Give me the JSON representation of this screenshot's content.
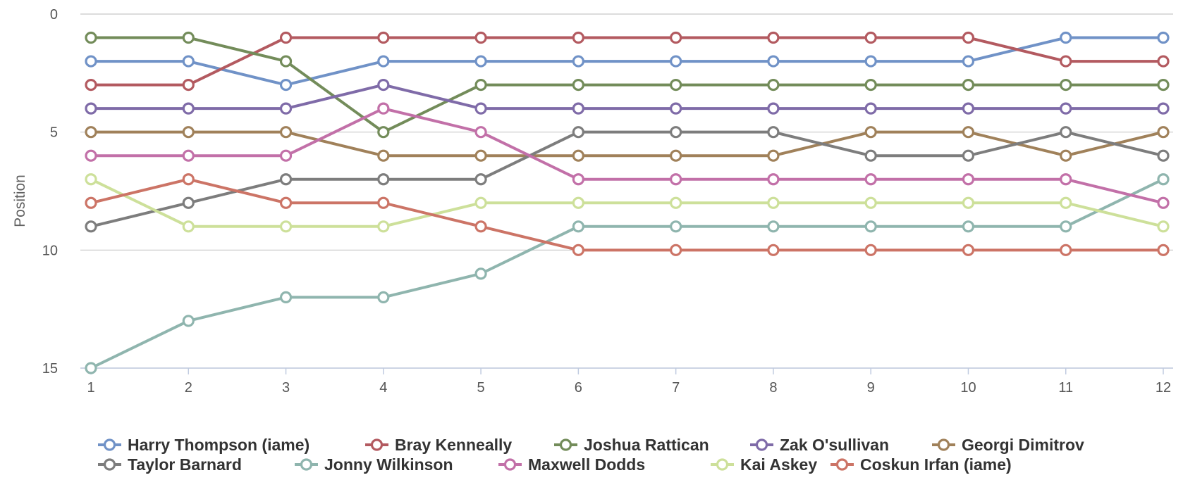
{
  "chart_data": {
    "type": "line",
    "title": "",
    "xlabel": "",
    "ylabel": "Position",
    "x": [
      1,
      2,
      3,
      4,
      5,
      6,
      7,
      8,
      9,
      10,
      11,
      12
    ],
    "xlim": [
      1,
      12
    ],
    "ylim": [
      0,
      15
    ],
    "y_reversed": true,
    "y_ticks": [
      0,
      5,
      10,
      15
    ],
    "grid": true,
    "legend_position": "bottom",
    "series": [
      {
        "name": "Harry Thompson (iame)",
        "color": "#7092c7",
        "values": [
          2,
          2,
          3,
          2,
          2,
          2,
          2,
          2,
          2,
          2,
          1,
          1
        ]
      },
      {
        "name": "Bray Kenneally",
        "color": "#b35a60",
        "values": [
          3,
          3,
          1,
          1,
          1,
          1,
          1,
          1,
          1,
          1,
          2,
          2
        ]
      },
      {
        "name": "Joshua Rattican",
        "color": "#738c5a",
        "values": [
          1,
          1,
          2,
          5,
          3,
          3,
          3,
          3,
          3,
          3,
          3,
          3
        ]
      },
      {
        "name": "Zak O'sullivan",
        "color": "#7f6ba8",
        "values": [
          4,
          4,
          4,
          3,
          4,
          4,
          4,
          4,
          4,
          4,
          4,
          4
        ]
      },
      {
        "name": "Georgi Dimitrov",
        "color": "#a0815a",
        "values": [
          5,
          5,
          5,
          6,
          6,
          6,
          6,
          6,
          5,
          5,
          6,
          5
        ]
      },
      {
        "name": "Taylor Barnard",
        "color": "#7d7d7d",
        "values": [
          9,
          8,
          7,
          7,
          7,
          5,
          5,
          5,
          6,
          6,
          5,
          6
        ]
      },
      {
        "name": "Jonny Wilkinson",
        "color": "#8fb5ae",
        "values": [
          15,
          13,
          12,
          12,
          11,
          9,
          9,
          9,
          9,
          9,
          9,
          7
        ]
      },
      {
        "name": "Maxwell Dodds",
        "color": "#c270a8",
        "values": [
          6,
          6,
          6,
          4,
          5,
          7,
          7,
          7,
          7,
          7,
          7,
          8
        ]
      },
      {
        "name": "Kai Askey",
        "color": "#cde09a",
        "values": [
          7,
          9,
          9,
          9,
          8,
          8,
          8,
          8,
          8,
          8,
          8,
          9
        ]
      },
      {
        "name": "Coskun Irfan (iame)",
        "color": "#cc7466",
        "values": [
          8,
          7,
          8,
          8,
          9,
          10,
          10,
          10,
          10,
          10,
          10,
          10
        ]
      }
    ]
  }
}
